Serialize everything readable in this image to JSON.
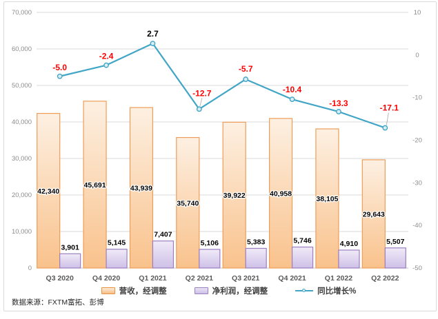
{
  "chart_data": {
    "type": "combo-bar-line",
    "title": "",
    "categories": [
      "Q3 2020",
      "Q4 2020",
      "Q1 2021",
      "Q2 2021",
      "Q3 2021",
      "Q4 2021",
      "Q1 2022",
      "Q2 2022"
    ],
    "series": [
      {
        "name": "营收，经调整",
        "type": "bar",
        "axis": "left",
        "values": [
          42340,
          45691,
          43939,
          35740,
          39922,
          40958,
          38105,
          29643
        ]
      },
      {
        "name": "净利润，经调整",
        "type": "bar",
        "axis": "left",
        "values": [
          3901,
          5145,
          7407,
          5106,
          5383,
          5746,
          4910,
          5507
        ]
      },
      {
        "name": "同比增长%",
        "type": "line",
        "axis": "right",
        "values": [
          -5.0,
          -2.4,
          2.7,
          -12.7,
          -5.7,
          -10.4,
          -13.3,
          -17.1
        ]
      }
    ],
    "left_axis": {
      "min": 0,
      "max": 70000,
      "step": 10000,
      "tick_labels": [
        "0",
        "10,000",
        "20,000",
        "30,000",
        "40,000",
        "50,000",
        "60,000",
        "70,000"
      ]
    },
    "right_axis": {
      "min": -50,
      "max": 10,
      "step": 10,
      "tick_labels": [
        "-50",
        "-40",
        "-30",
        "-20",
        "-10",
        "0",
        "10"
      ]
    },
    "grid": true,
    "legend_position": "bottom",
    "data_label_style": {
      "bar": "thousand-separated black bold",
      "line": "one decimal, negatives in red"
    }
  },
  "legend": {
    "items": [
      {
        "label": "营收，经调整",
        "swatch": "orange-bar"
      },
      {
        "label": "净利润，经调整",
        "swatch": "purple-bar"
      },
      {
        "label": "同比增长%",
        "swatch": "teal-line-marker"
      }
    ]
  },
  "footer": {
    "source": "数据来源：FXTM富拓、彭博"
  },
  "colors": {
    "revenue_fill_top": "#FDF0E2",
    "revenue_fill_bottom": "#F9C28C",
    "revenue_border": "#ED9D57",
    "profit_fill_top": "#F0EBF8",
    "profit_fill_bottom": "#CEC0E7",
    "profit_border": "#9B7EC0",
    "growth_line": "#41A5C5",
    "growth_marker_fill": "#D9EDF4",
    "negative_label": "#FF0000",
    "positive_label": "#000000",
    "gridline": "#DADADA",
    "baseline": "#C6C6C6",
    "axis_text": "#8C8C8C",
    "category_text": "#595959",
    "frame_border": "#D9D9D9"
  }
}
